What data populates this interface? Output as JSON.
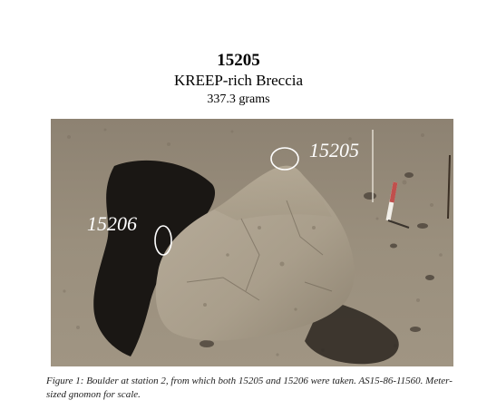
{
  "header": {
    "sample_number": "15205",
    "sample_type": "KREEP-rich Breccia",
    "mass": "337.3 grams"
  },
  "figure": {
    "labels": {
      "sample_a": "15205",
      "sample_b": "15206"
    },
    "caption": "Figure 1:  Boulder at station 2, from which both 15205 and 15206 were taken.  AS15-86-11560.  Meter-sized gnomon for scale."
  }
}
